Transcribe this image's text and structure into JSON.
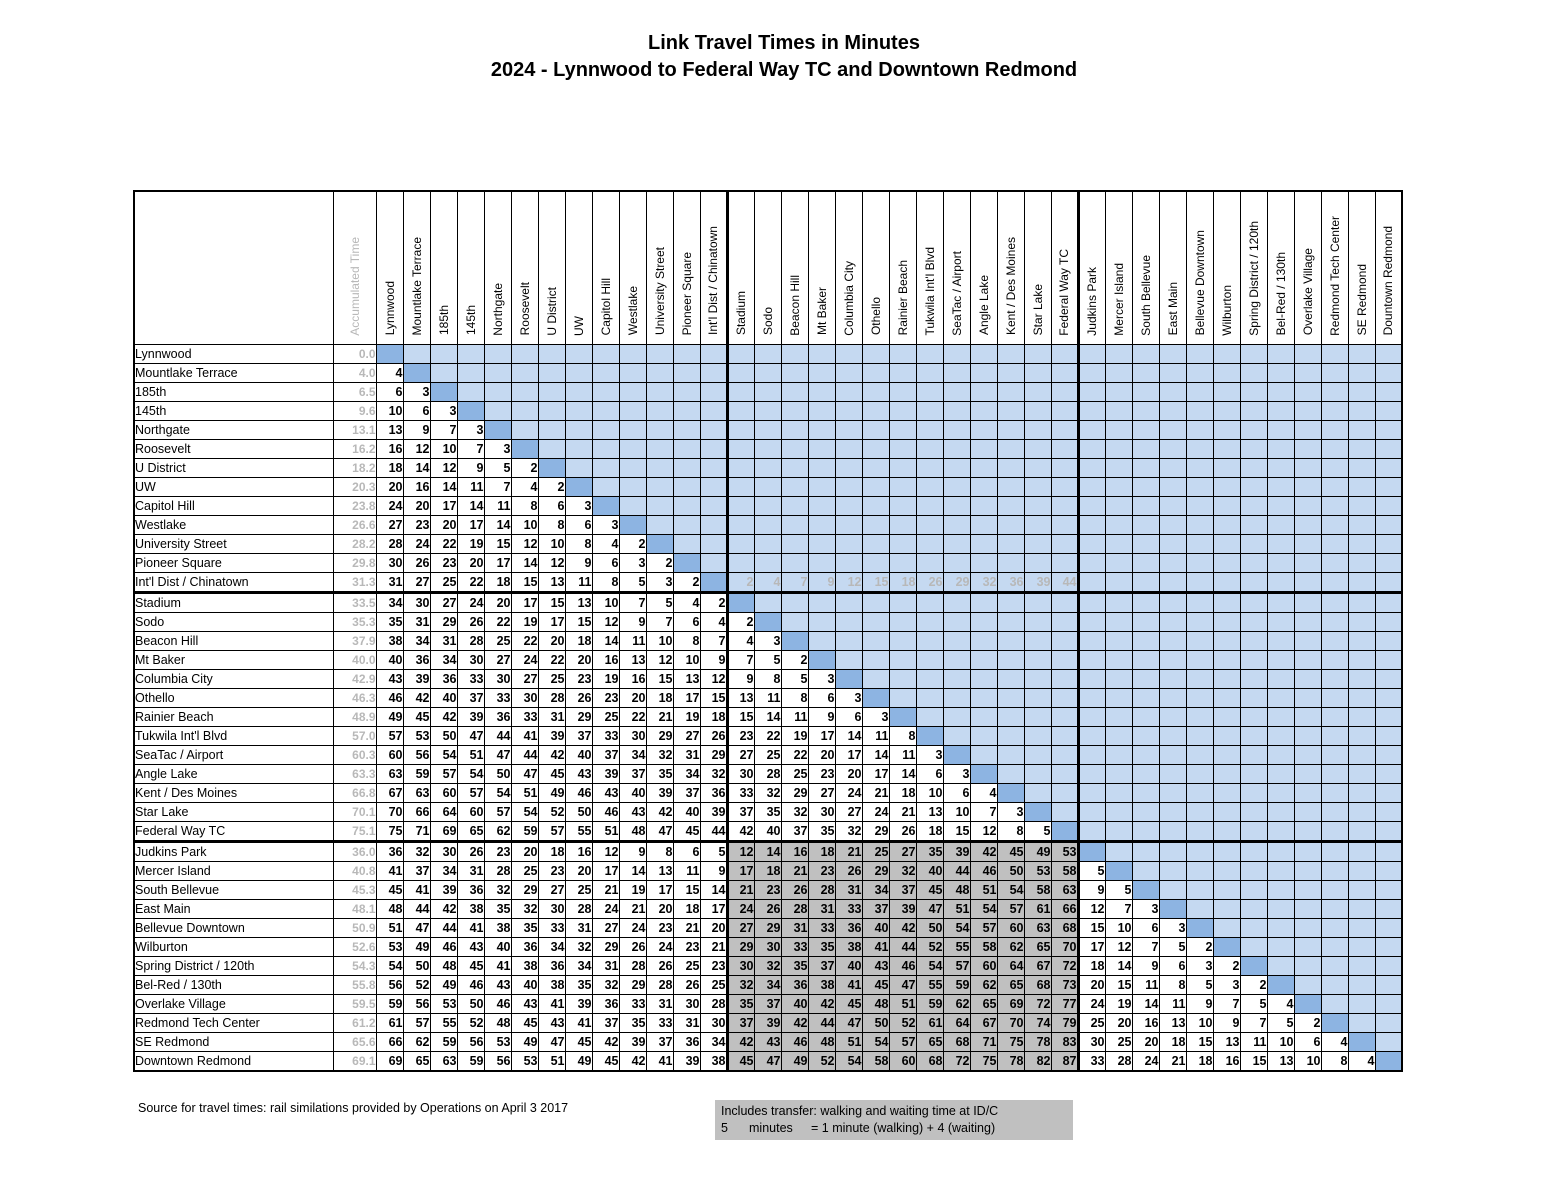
{
  "title": {
    "line1": "Link Travel Times in Minutes",
    "line2": "2024 - Lynnwood to Federal Way TC and Downtown Redmond"
  },
  "colors": {
    "empty_cell": "#c5d9f1",
    "diagonal_cell": "#8db4e2",
    "transfer_cell": "#c0c0c0",
    "muted_text": "#b8b8b8"
  },
  "table": {
    "acc_header": "Accumulated Time",
    "columns": [
      "Lynnwood",
      "Mountlake Terrace",
      "185th",
      "145th",
      "Northgate",
      "Roosevelt",
      "U District",
      "UW",
      "Capitol Hill",
      "Westlake",
      "University Street",
      "Pioneer Square",
      "Int'l Dist / Chinatown",
      "Stadium",
      "Sodo",
      "Beacon Hill",
      "Mt Baker",
      "Columbia City",
      "Othello",
      "Rainier Beach",
      "Tukwila Int'l Blvd",
      "SeaTac / Airport",
      "Angle Lake",
      "Kent / Des Moines",
      "Star Lake",
      "Federal Way TC",
      "Judkins Park",
      "Mercer Island",
      "South Bellevue",
      "East Main",
      "Bellevue Downtown",
      "Wilburton",
      "Spring District / 120th",
      "Bel-Red / 130th",
      "Overlake Village",
      "Redmond Tech Center",
      "SE Redmond",
      "Dountown Redmond"
    ],
    "rows": [
      {
        "label": "Lynnwood",
        "acc": "0.0",
        "cells": [
          "D"
        ]
      },
      {
        "label": "Mountlake Terrace",
        "acc": "4.0",
        "cells": [
          4,
          "D"
        ]
      },
      {
        "label": "185th",
        "acc": "6.5",
        "cells": [
          6,
          3,
          "D"
        ]
      },
      {
        "label": "145th",
        "acc": "9.6",
        "cells": [
          10,
          6,
          3,
          "D"
        ]
      },
      {
        "label": "Northgate",
        "acc": "13.1",
        "cells": [
          13,
          9,
          7,
          3,
          "D"
        ]
      },
      {
        "label": "Roosevelt",
        "acc": "16.2",
        "cells": [
          16,
          12,
          10,
          7,
          3,
          "D"
        ]
      },
      {
        "label": "U District",
        "acc": "18.2",
        "cells": [
          18,
          14,
          12,
          9,
          5,
          2,
          "D"
        ]
      },
      {
        "label": "UW",
        "acc": "20.3",
        "cells": [
          20,
          16,
          14,
          11,
          7,
          4,
          2,
          "D"
        ]
      },
      {
        "label": "Capitol Hill",
        "acc": "23.8",
        "cells": [
          24,
          20,
          17,
          14,
          11,
          8,
          6,
          3,
          "D"
        ]
      },
      {
        "label": "Westlake",
        "acc": "26.6",
        "cells": [
          27,
          23,
          20,
          17,
          14,
          10,
          8,
          6,
          3,
          "D"
        ]
      },
      {
        "label": "University Street",
        "acc": "28.2",
        "cells": [
          28,
          24,
          22,
          19,
          15,
          12,
          10,
          8,
          4,
          2,
          "D"
        ]
      },
      {
        "label": "Pioneer Square",
        "acc": "29.8",
        "cells": [
          30,
          26,
          23,
          20,
          17,
          14,
          12,
          9,
          6,
          3,
          2,
          "D"
        ]
      },
      {
        "label": "Int'l Dist / Chinatown",
        "acc": "31.3",
        "cells": [
          31,
          27,
          25,
          22,
          18,
          15,
          13,
          11,
          8,
          5,
          3,
          2,
          "D",
          "t:2",
          "t:4",
          "t:7",
          "t:9",
          "t:12",
          "t:15",
          "t:18",
          "t:26",
          "t:29",
          "t:32",
          "t:36",
          "t:39",
          "t:44"
        ]
      },
      {
        "label": "Stadium",
        "acc": "33.5",
        "cells": [
          34,
          30,
          27,
          24,
          20,
          17,
          15,
          13,
          10,
          7,
          5,
          4,
          2,
          "D"
        ]
      },
      {
        "label": "Sodo",
        "acc": "35.3",
        "cells": [
          35,
          31,
          29,
          26,
          22,
          19,
          17,
          15,
          12,
          9,
          7,
          6,
          4,
          2,
          "D"
        ]
      },
      {
        "label": "Beacon Hill",
        "acc": "37.9",
        "cells": [
          38,
          34,
          31,
          28,
          25,
          22,
          20,
          18,
          14,
          11,
          10,
          8,
          7,
          4,
          3,
          "D"
        ]
      },
      {
        "label": "Mt Baker",
        "acc": "40.0",
        "cells": [
          40,
          36,
          34,
          30,
          27,
          24,
          22,
          20,
          16,
          13,
          12,
          10,
          9,
          7,
          5,
          2,
          "D"
        ]
      },
      {
        "label": "Columbia City",
        "acc": "42.9",
        "cells": [
          43,
          39,
          36,
          33,
          30,
          27,
          25,
          23,
          19,
          16,
          15,
          13,
          12,
          9,
          8,
          5,
          3,
          "D"
        ]
      },
      {
        "label": "Othello",
        "acc": "46.3",
        "cells": [
          46,
          42,
          40,
          37,
          33,
          30,
          28,
          26,
          23,
          20,
          18,
          17,
          15,
          13,
          11,
          8,
          6,
          3,
          "D"
        ]
      },
      {
        "label": "Rainier Beach",
        "acc": "48.9",
        "cells": [
          49,
          45,
          42,
          39,
          36,
          33,
          31,
          29,
          25,
          22,
          21,
          19,
          18,
          15,
          14,
          11,
          9,
          6,
          3,
          "D"
        ]
      },
      {
        "label": "Tukwila Int'l Blvd",
        "acc": "57.0",
        "cells": [
          57,
          53,
          50,
          47,
          44,
          41,
          39,
          37,
          33,
          30,
          29,
          27,
          26,
          23,
          22,
          19,
          17,
          14,
          11,
          8,
          "D"
        ]
      },
      {
        "label": "SeaTac / Airport",
        "acc": "60.3",
        "cells": [
          60,
          56,
          54,
          51,
          47,
          44,
          42,
          40,
          37,
          34,
          32,
          31,
          29,
          27,
          25,
          22,
          20,
          17,
          14,
          11,
          3,
          "D"
        ]
      },
      {
        "label": "Angle Lake",
        "acc": "63.3",
        "cells": [
          63,
          59,
          57,
          54,
          50,
          47,
          45,
          43,
          39,
          37,
          35,
          34,
          32,
          30,
          28,
          25,
          23,
          20,
          17,
          14,
          6,
          3,
          "D"
        ]
      },
      {
        "label": "Kent / Des Moines",
        "acc": "66.8",
        "cells": [
          67,
          63,
          60,
          57,
          54,
          51,
          49,
          46,
          43,
          40,
          39,
          37,
          36,
          33,
          32,
          29,
          27,
          24,
          21,
          18,
          10,
          6,
          4,
          "D"
        ]
      },
      {
        "label": "Star Lake",
        "acc": "70.1",
        "cells": [
          70,
          66,
          64,
          60,
          57,
          54,
          52,
          50,
          46,
          43,
          42,
          40,
          39,
          37,
          35,
          32,
          30,
          27,
          24,
          21,
          13,
          10,
          7,
          3,
          "D"
        ]
      },
      {
        "label": "Federal Way TC",
        "acc": "75.1",
        "cells": [
          75,
          71,
          69,
          65,
          62,
          59,
          57,
          55,
          51,
          48,
          47,
          45,
          44,
          42,
          40,
          37,
          35,
          32,
          29,
          26,
          18,
          15,
          12,
          8,
          5,
          "D"
        ]
      },
      {
        "label": "Judkins Park",
        "acc": "36.0",
        "cells": [
          36,
          32,
          30,
          26,
          23,
          20,
          18,
          16,
          12,
          9,
          8,
          6,
          5,
          "g:12",
          "g:14",
          "g:16",
          "g:18",
          "g:21",
          "g:25",
          "g:27",
          "g:35",
          "g:39",
          "g:42",
          "g:45",
          "g:49",
          "g:53",
          "D"
        ]
      },
      {
        "label": "Mercer Island",
        "acc": "40.8",
        "cells": [
          41,
          37,
          34,
          31,
          28,
          25,
          23,
          20,
          17,
          14,
          13,
          11,
          9,
          "g:17",
          "g:18",
          "g:21",
          "g:23",
          "g:26",
          "g:29",
          "g:32",
          "g:40",
          "g:44",
          "g:46",
          "g:50",
          "g:53",
          "g:58",
          5,
          "D"
        ]
      },
      {
        "label": "South Bellevue",
        "acc": "45.3",
        "cells": [
          45,
          41,
          39,
          36,
          32,
          29,
          27,
          25,
          21,
          19,
          17,
          15,
          14,
          "g:21",
          "g:23",
          "g:26",
          "g:28",
          "g:31",
          "g:34",
          "g:37",
          "g:45",
          "g:48",
          "g:51",
          "g:54",
          "g:58",
          "g:63",
          9,
          5,
          "D"
        ]
      },
      {
        "label": "East Main",
        "acc": "48.1",
        "cells": [
          48,
          44,
          42,
          38,
          35,
          32,
          30,
          28,
          24,
          21,
          20,
          18,
          17,
          "g:24",
          "g:26",
          "g:28",
          "g:31",
          "g:33",
          "g:37",
          "g:39",
          "g:47",
          "g:51",
          "g:54",
          "g:57",
          "g:61",
          "g:66",
          12,
          7,
          3,
          "D"
        ]
      },
      {
        "label": "Bellevue Downtown",
        "acc": "50.9",
        "cells": [
          51,
          47,
          44,
          41,
          38,
          35,
          33,
          31,
          27,
          24,
          23,
          21,
          20,
          "g:27",
          "g:29",
          "g:31",
          "g:33",
          "g:36",
          "g:40",
          "g:42",
          "g:50",
          "g:54",
          "g:57",
          "g:60",
          "g:63",
          "g:68",
          15,
          10,
          6,
          3,
          "D"
        ]
      },
      {
        "label": "Wilburton",
        "acc": "52.6",
        "cells": [
          53,
          49,
          46,
          43,
          40,
          36,
          34,
          32,
          29,
          26,
          24,
          23,
          21,
          "g:29",
          "g:30",
          "g:33",
          "g:35",
          "g:38",
          "g:41",
          "g:44",
          "g:52",
          "g:55",
          "g:58",
          "g:62",
          "g:65",
          "g:70",
          17,
          12,
          7,
          5,
          2,
          "D"
        ]
      },
      {
        "label": "Spring District / 120th",
        "acc": "54.3",
        "cells": [
          54,
          50,
          48,
          45,
          41,
          38,
          36,
          34,
          31,
          28,
          26,
          25,
          23,
          "g:30",
          "g:32",
          "g:35",
          "g:37",
          "g:40",
          "g:43",
          "g:46",
          "g:54",
          "g:57",
          "g:60",
          "g:64",
          "g:67",
          "g:72",
          18,
          14,
          9,
          6,
          3,
          2,
          "D"
        ]
      },
      {
        "label": "Bel-Red / 130th",
        "acc": "55.8",
        "cells": [
          56,
          52,
          49,
          46,
          43,
          40,
          38,
          35,
          32,
          29,
          28,
          26,
          25,
          "g:32",
          "g:34",
          "g:36",
          "g:38",
          "g:41",
          "g:45",
          "g:47",
          "g:55",
          "g:59",
          "g:62",
          "g:65",
          "g:68",
          "g:73",
          20,
          15,
          11,
          8,
          5,
          3,
          2,
          "D"
        ]
      },
      {
        "label": "Overlake Village",
        "acc": "59.5",
        "cells": [
          59,
          56,
          53,
          50,
          46,
          43,
          41,
          39,
          36,
          33,
          31,
          30,
          28,
          "g:35",
          "g:37",
          "g:40",
          "g:42",
          "g:45",
          "g:48",
          "g:51",
          "g:59",
          "g:62",
          "g:65",
          "g:69",
          "g:72",
          "g:77",
          24,
          19,
          14,
          11,
          9,
          7,
          5,
          4,
          "D"
        ]
      },
      {
        "label": "Redmond Tech Center",
        "acc": "61.2",
        "cells": [
          61,
          57,
          55,
          52,
          48,
          45,
          43,
          41,
          37,
          35,
          33,
          31,
          30,
          "g:37",
          "g:39",
          "g:42",
          "g:44",
          "g:47",
          "g:50",
          "g:52",
          "g:61",
          "g:64",
          "g:67",
          "g:70",
          "g:74",
          "g:79",
          25,
          20,
          16,
          13,
          10,
          9,
          7,
          5,
          2,
          "D"
        ]
      },
      {
        "label": "SE Redmond",
        "acc": "65.6",
        "cells": [
          66,
          62,
          59,
          56,
          53,
          49,
          47,
          45,
          42,
          39,
          37,
          36,
          34,
          "g:42",
          "g:43",
          "g:46",
          "g:48",
          "g:51",
          "g:54",
          "g:57",
          "g:65",
          "g:68",
          "g:71",
          "g:75",
          "g:78",
          "g:83",
          30,
          25,
          20,
          18,
          15,
          13,
          11,
          10,
          6,
          4,
          "D"
        ]
      },
      {
        "label": "Downtown Redmond",
        "acc": "69.1",
        "cells": [
          69,
          65,
          63,
          59,
          56,
          53,
          51,
          49,
          45,
          42,
          41,
          39,
          38,
          "g:45",
          "g:47",
          "g:49",
          "g:52",
          "g:54",
          "g:58",
          "g:60",
          "g:68",
          "g:72",
          "g:75",
          "g:78",
          "g:82",
          "g:87",
          33,
          28,
          24,
          21,
          18,
          16,
          15,
          13,
          10,
          8,
          4,
          "D"
        ]
      }
    ]
  },
  "footer": {
    "source": "Source for travel times:  rail similations provided by Operations on April 3 2017",
    "note_line1": "Includes transfer: walking and waiting time at ID/C",
    "note_value": "5",
    "note_unit": "minutes",
    "note_formula": "= 1 minute (walking) + 4 (waiting)"
  }
}
